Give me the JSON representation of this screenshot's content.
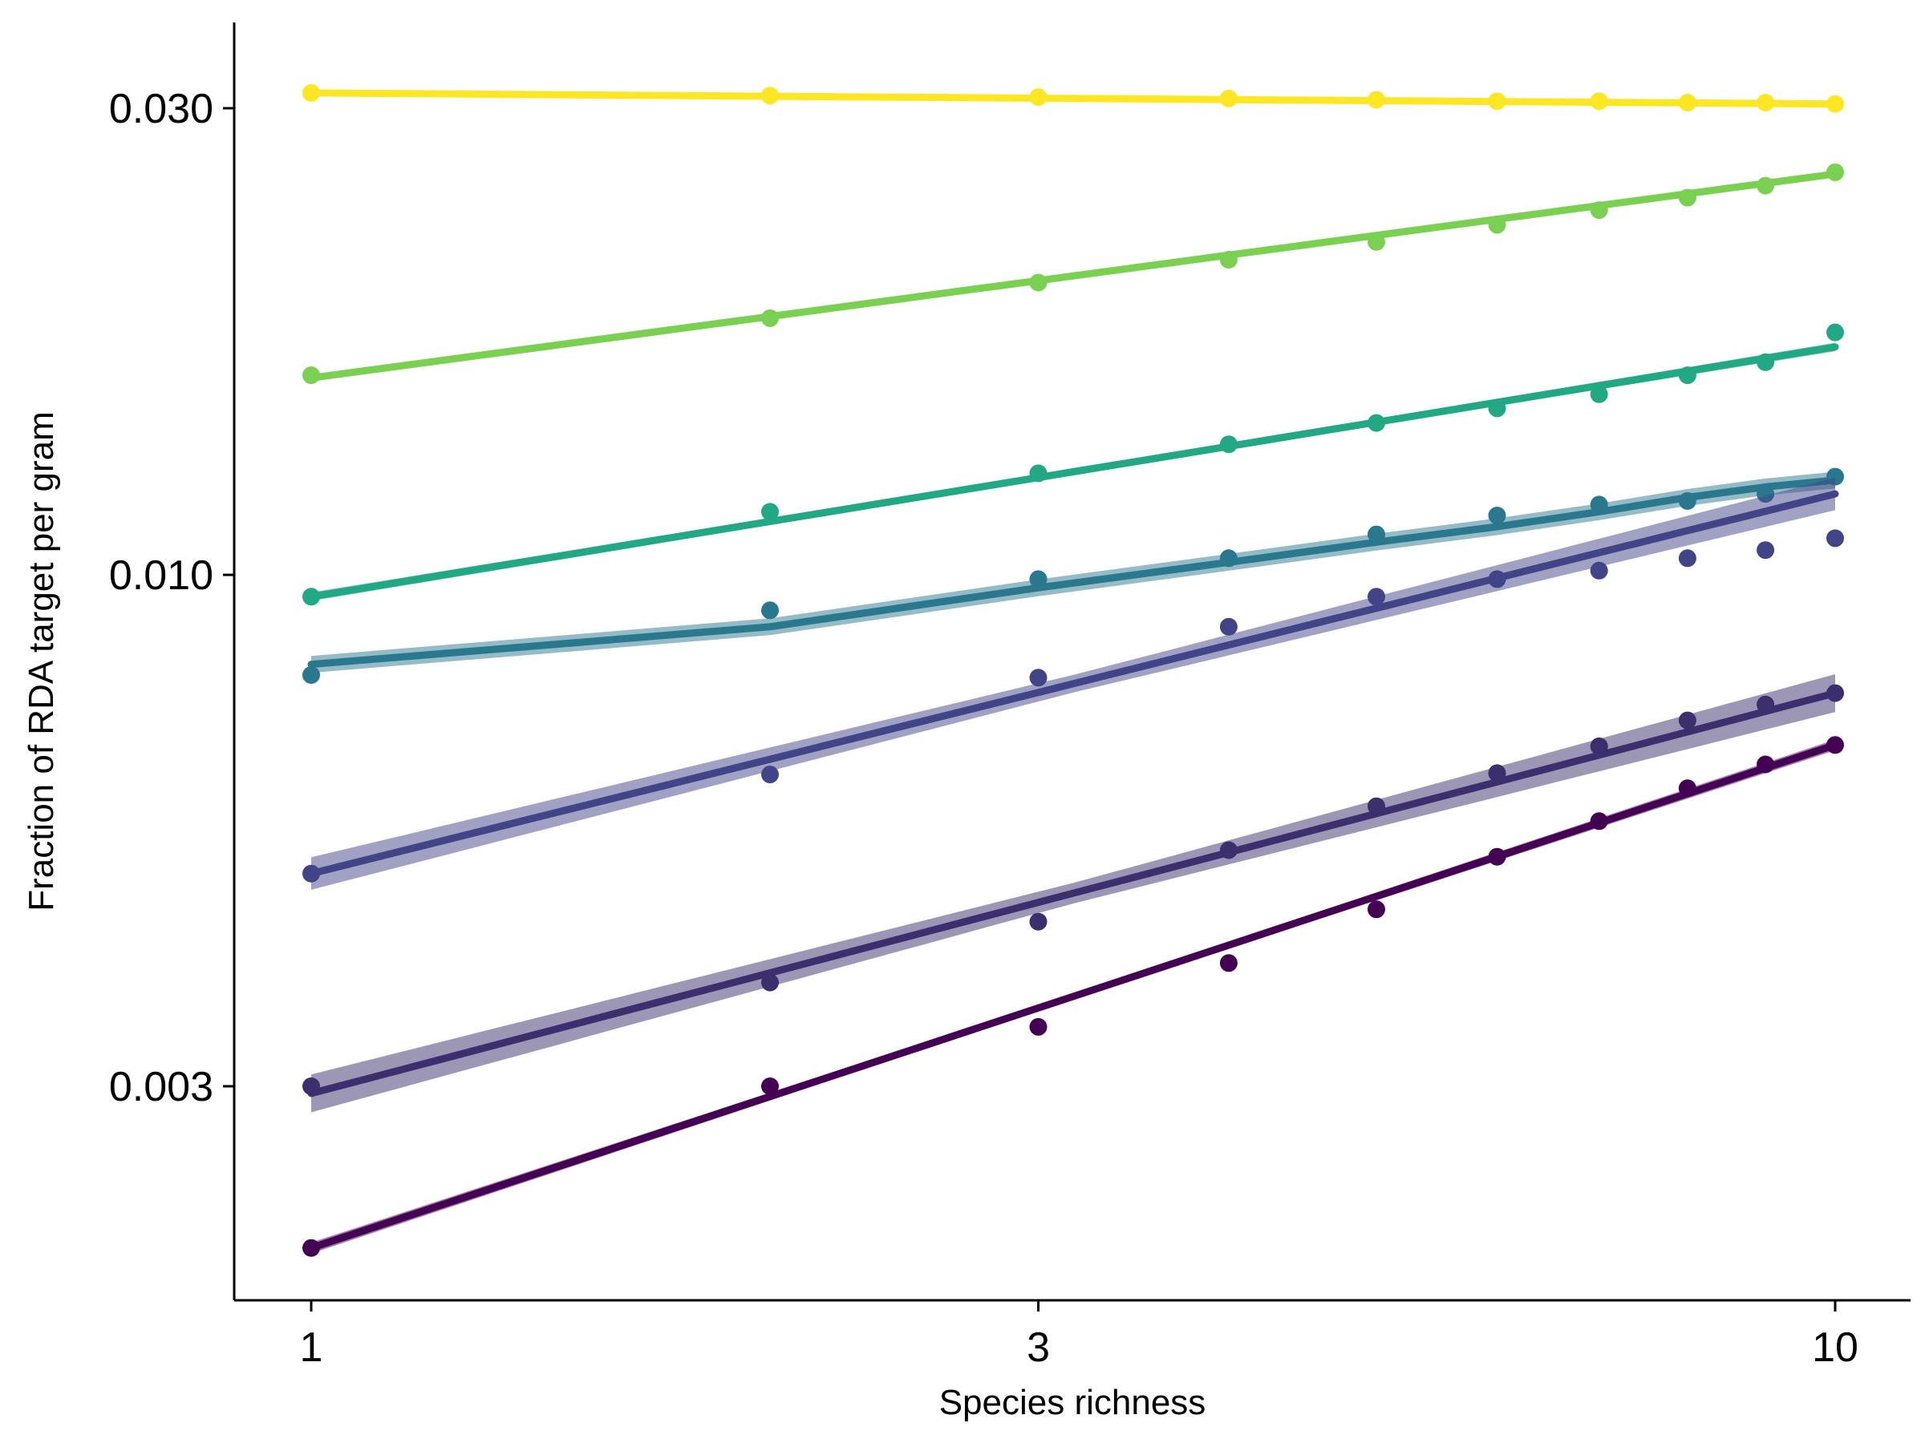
{
  "chart_data": {
    "type": "scatter",
    "title": "",
    "xlabel": "Species richness",
    "ylabel": "Fraction of RDA target per gram",
    "xscale": "log",
    "yscale": "log",
    "xlim": [
      0.9,
      11
    ],
    "ylim": [
      0.00185,
      0.0345
    ],
    "xticks": [
      1,
      3,
      10
    ],
    "xtick_labels": [
      "1",
      "3",
      "10"
    ],
    "yticks": [
      0.003,
      0.01,
      0.03
    ],
    "ytick_labels": [
      "0.003",
      "0.010",
      "0.030"
    ],
    "grid": false,
    "x": [
      1,
      2,
      3,
      4,
      5,
      6,
      7,
      8,
      9,
      10
    ],
    "series": [
      {
        "color": "#fde725",
        "values": [
          0.0311,
          0.0309,
          0.0308,
          0.0307,
          0.0306,
          0.0305,
          0.0305,
          0.0304,
          0.0304,
          0.0303
        ],
        "fit": [
          0.0311,
          0.0303
        ],
        "band": 0.005
      },
      {
        "color": "#7ad151",
        "values": [
          0.016,
          0.0183,
          0.0199,
          0.021,
          0.0219,
          0.0228,
          0.0236,
          0.0243,
          0.025,
          0.0258
        ],
        "fit": [
          0.0159,
          0.0257
        ],
        "band": 0.005
      },
      {
        "color": "#22a884",
        "values": [
          0.0095,
          0.0116,
          0.0127,
          0.0136,
          0.0143,
          0.0148,
          0.0153,
          0.016,
          0.0165,
          0.0177
        ],
        "fit": [
          0.0095,
          0.0171
        ],
        "band": 0.008
      },
      {
        "color": "#2a788e",
        "values": [
          0.0079,
          0.0092,
          0.0099,
          0.0104,
          0.011,
          0.0115,
          0.0118,
          0.0119,
          0.0121,
          0.0126
        ],
        "fit_type": "curve",
        "fit_points": [
          0.0081,
          0.00885,
          0.0097,
          0.0103,
          0.0108,
          0.0112,
          0.0116,
          0.012,
          0.0123,
          0.0125
        ],
        "band": 0.02
      },
      {
        "color": "#414487",
        "values": [
          0.00495,
          0.00625,
          0.00785,
          0.00885,
          0.0095,
          0.0099,
          0.0101,
          0.0104,
          0.0106,
          0.0109
        ],
        "fit": [
          0.00495,
          0.0121
        ],
        "band": 0.03
      },
      {
        "color": "#3b2f6e",
        "values": [
          0.003,
          0.00383,
          0.00442,
          0.00523,
          0.0058,
          0.00627,
          0.00668,
          0.0071,
          0.00737,
          0.00757
        ],
        "fit": [
          0.00295,
          0.00757
        ],
        "band": 0.035
      },
      {
        "color": "#440154",
        "values": [
          0.00205,
          0.003,
          0.00345,
          0.00401,
          0.00455,
          0.00515,
          0.0056,
          0.00605,
          0.0064,
          0.0067
        ],
        "fit": [
          0.00205,
          0.0067
        ],
        "band": 0.01
      }
    ]
  }
}
